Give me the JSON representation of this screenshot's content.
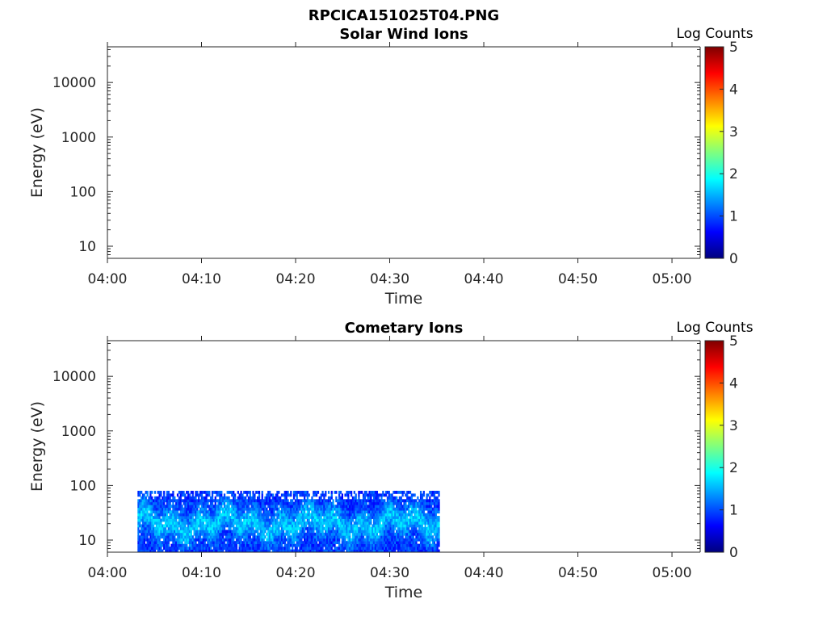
{
  "figure": {
    "title": "RPCICA151025T04.PNG"
  },
  "colormap": [
    "#00007f",
    "#0000ff",
    "#007fff",
    "#00ffff",
    "#7fff7f",
    "#ffff00",
    "#ff7f00",
    "#ff0000",
    "#7f0000"
  ],
  "chart_data": [
    {
      "type": "heatmap",
      "title": "Solar Wind Ions",
      "xlabel": "Time",
      "ylabel": "Energy (eV)",
      "x_ticks": [
        "04:00",
        "04:10",
        "04:20",
        "04:30",
        "04:40",
        "04:50",
        "05:00"
      ],
      "x_tick_minutes": [
        0,
        10,
        20,
        30,
        40,
        50,
        60
      ],
      "xlim_minutes": [
        0,
        63
      ],
      "yscale": "log",
      "y_ticks": [
        "10",
        "100",
        "1000",
        "10000"
      ],
      "y_tick_values": [
        10,
        100,
        1000,
        10000
      ],
      "ylim": [
        6,
        45000
      ],
      "colorbar": {
        "label": "Log Counts",
        "range": [
          0,
          5
        ],
        "ticks": [
          "0",
          "1",
          "2",
          "3",
          "4",
          "5"
        ]
      },
      "data_region": null
    },
    {
      "type": "heatmap",
      "title": "Cometary Ions",
      "xlabel": "Time",
      "ylabel": "Energy (eV)",
      "x_ticks": [
        "04:00",
        "04:10",
        "04:20",
        "04:30",
        "04:40",
        "04:50",
        "05:00"
      ],
      "x_tick_minutes": [
        0,
        10,
        20,
        30,
        40,
        50,
        60
      ],
      "xlim_minutes": [
        0,
        63
      ],
      "yscale": "log",
      "y_ticks": [
        "10",
        "100",
        "1000",
        "10000"
      ],
      "y_tick_values": [
        10,
        100,
        1000,
        10000
      ],
      "ylim": [
        6,
        45000
      ],
      "colorbar": {
        "label": "Log Counts",
        "range": [
          0,
          5
        ],
        "ticks": [
          "0",
          "1",
          "2",
          "3",
          "4",
          "5"
        ]
      },
      "data_region": {
        "t_start_min": 3.2,
        "t_end_min": 35.3,
        "e_min": 6,
        "e_max": 80,
        "log_counts_range": [
          0.3,
          2.0
        ]
      }
    }
  ]
}
